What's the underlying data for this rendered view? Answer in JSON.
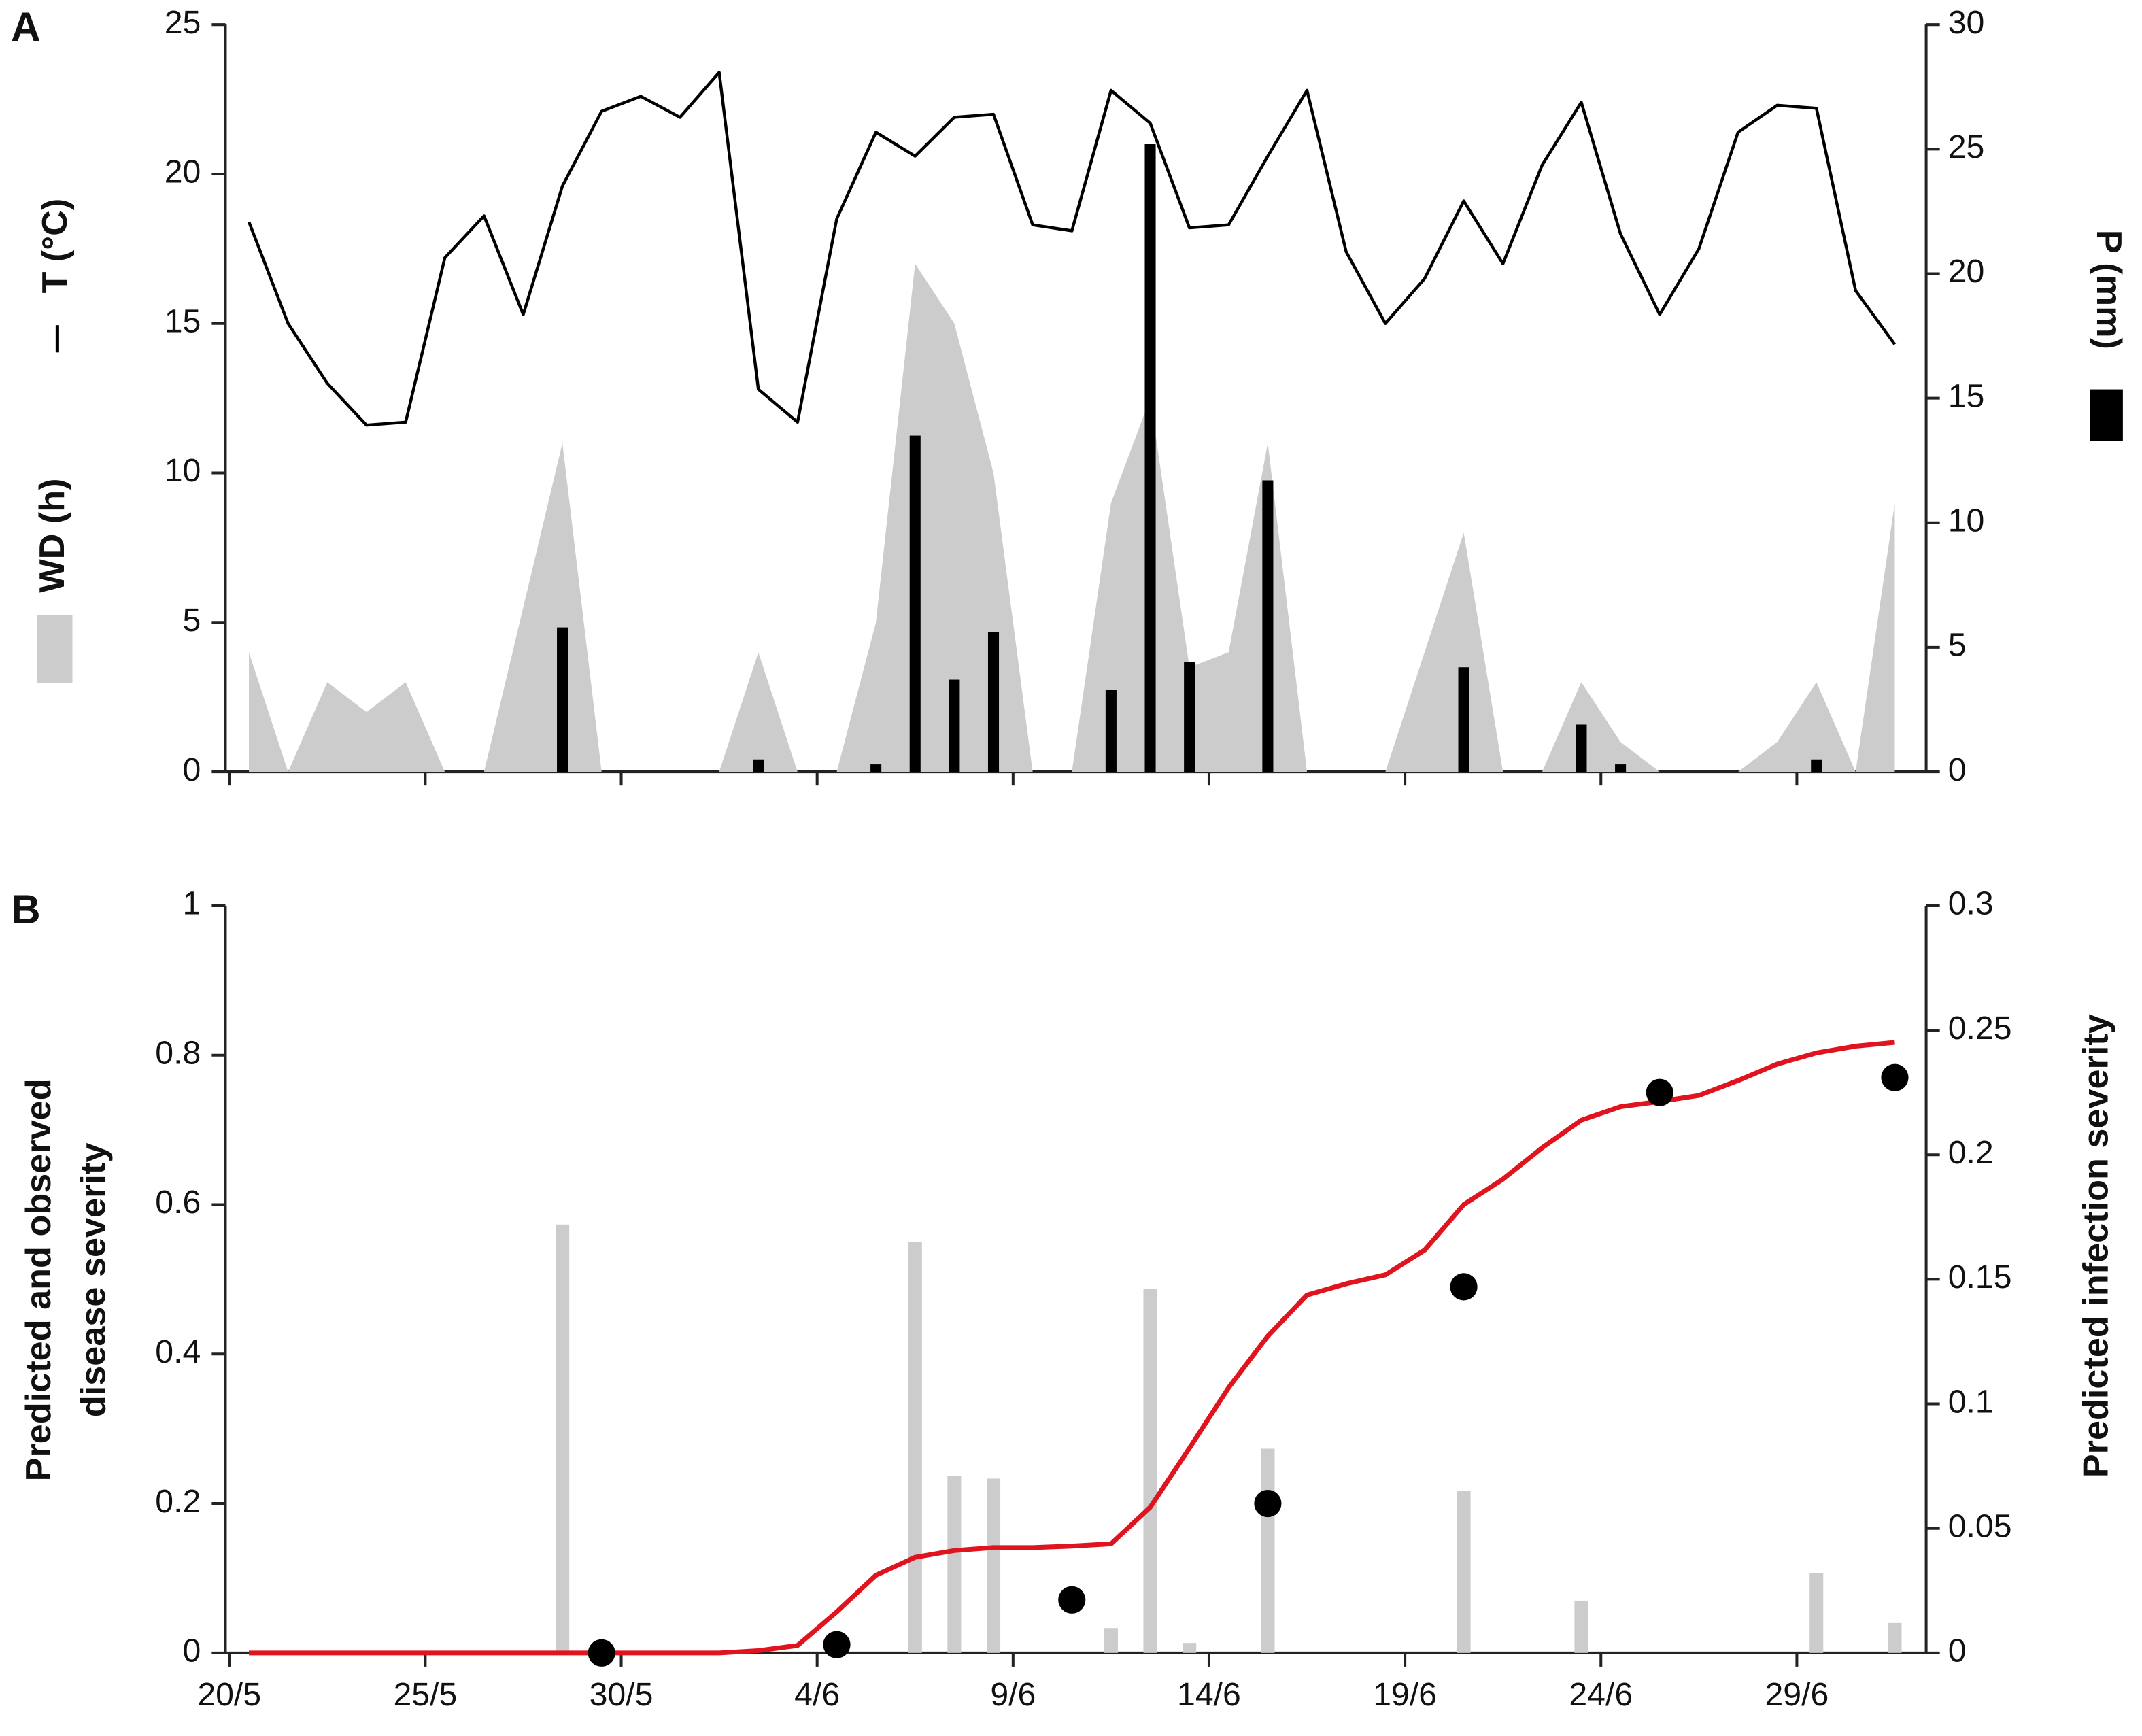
{
  "chart_data": [
    {
      "type": "combo",
      "panel": "A",
      "x": [
        0.5,
        1.5,
        2.5,
        3.5,
        4.5,
        5.5,
        6.5,
        7.5,
        8.5,
        9.5,
        10.5,
        11.5,
        12.5,
        13.5,
        14.5,
        15.5,
        16.5,
        17.5,
        18.5,
        19.5,
        20.5,
        21.5,
        22.5,
        23.5,
        24.5,
        25.5,
        26.5,
        27.5,
        28.5,
        29.5,
        30.5,
        31.5,
        32.5,
        33.5,
        34.5,
        35.5,
        36.5,
        37.5,
        38.5,
        39.5,
        40.5,
        41.5,
        42.5
      ],
      "xlim": [
        -0.1,
        43.3
      ],
      "xticks": [
        0,
        5,
        10,
        15,
        20,
        25,
        30,
        35,
        40
      ],
      "ylim": [
        0,
        25
      ],
      "yticks": [
        0,
        5,
        10,
        15,
        20,
        25
      ],
      "y2lim": [
        0,
        30
      ],
      "y2ticks": [
        0,
        5,
        10,
        15,
        20,
        25,
        30
      ],
      "series": [
        {
          "name": "WD (h)",
          "type": "area",
          "color": "#cccccc",
          "values": [
            4,
            0,
            3,
            2,
            3,
            0,
            0,
            5.5,
            11,
            0,
            0,
            0,
            0,
            4,
            0,
            0,
            5,
            17,
            15,
            10,
            0,
            0,
            9,
            12.5,
            3.5,
            4,
            11,
            0,
            0,
            0,
            4,
            8,
            0,
            0,
            3,
            1,
            0,
            0,
            0,
            1,
            3,
            0,
            9
          ]
        },
        {
          "name": "P (mm)",
          "type": "bar",
          "axis": "y2",
          "color": "#000000",
          "values": [
            0,
            0,
            0,
            0,
            0,
            0,
            0,
            0,
            5.8,
            0,
            0,
            0,
            0,
            0.5,
            0,
            0,
            0.3,
            13.5,
            3.7,
            5.6,
            0,
            0,
            3.3,
            25.2,
            4.4,
            0,
            11.7,
            0,
            0,
            0,
            0,
            4.2,
            0,
            0,
            1.9,
            0.3,
            0,
            0,
            0,
            0,
            0.5,
            0,
            0
          ]
        },
        {
          "name": "T (°C)",
          "type": "line",
          "color": "#000000",
          "values": [
            18.4,
            15.0,
            13.0,
            11.6,
            11.7,
            17.2,
            18.6,
            15.3,
            19.6,
            22.1,
            22.6,
            21.9,
            23.4,
            12.8,
            11.7,
            18.5,
            21.4,
            20.6,
            21.9,
            22.0,
            18.3,
            18.1,
            22.8,
            21.7,
            18.2,
            18.3,
            20.6,
            22.8,
            17.4,
            15.0,
            16.5,
            19.1,
            17.0,
            20.3,
            22.4,
            18.0,
            15.3,
            17.5,
            21.4,
            22.3,
            22.2,
            16.1,
            14.3
          ]
        }
      ]
    },
    {
      "type": "combo",
      "panel": "B",
      "ylabel": [
        "Predicted and observed",
        "disease severity"
      ],
      "y2label": "Predicted infection severity",
      "x": [
        0.5,
        1.5,
        2.5,
        3.5,
        4.5,
        5.5,
        6.5,
        7.5,
        8.5,
        9.5,
        10.5,
        11.5,
        12.5,
        13.5,
        14.5,
        15.5,
        16.5,
        17.5,
        18.5,
        19.5,
        20.5,
        21.5,
        22.5,
        23.5,
        24.5,
        25.5,
        26.5,
        27.5,
        28.5,
        29.5,
        30.5,
        31.5,
        32.5,
        33.5,
        34.5,
        35.5,
        36.5,
        37.5,
        38.5,
        39.5,
        40.5,
        41.5,
        42.5
      ],
      "xlim": [
        -0.1,
        43.3
      ],
      "xticks": [
        {
          "value": 0,
          "label": "20/5"
        },
        {
          "value": 5,
          "label": "25/5"
        },
        {
          "value": 10,
          "label": "30/5"
        },
        {
          "value": 15,
          "label": "4/6"
        },
        {
          "value": 20,
          "label": "9/6"
        },
        {
          "value": 25,
          "label": "14/6"
        },
        {
          "value": 30,
          "label": "19/6"
        },
        {
          "value": 35,
          "label": "24/6"
        },
        {
          "value": 40,
          "label": "29/6"
        }
      ],
      "ylim": [
        0,
        1
      ],
      "yticks": [
        0,
        0.2,
        0.4,
        0.6,
        0.8,
        1
      ],
      "y2lim": [
        0,
        0.3
      ],
      "y2ticks": [
        0,
        0.05,
        0.1,
        0.15,
        0.2,
        0.25,
        0.3
      ],
      "series": [
        {
          "type": "bar",
          "axis": "y2",
          "color": "#cccccc",
          "values": [
            0,
            0,
            0,
            0,
            0,
            0,
            0,
            0,
            0.172,
            0,
            0,
            0,
            0,
            0,
            0,
            0,
            0,
            0.165,
            0.071,
            0.07,
            0,
            0,
            0.01,
            0.146,
            0.004,
            0,
            0.082,
            0,
            0,
            0,
            0,
            0.065,
            0,
            0,
            0.021,
            0,
            0,
            0,
            0,
            0,
            0.032,
            0,
            0.012
          ]
        },
        {
          "type": "line",
          "color": "#e0141e",
          "values": [
            0,
            0,
            0,
            0,
            0,
            0,
            0,
            0,
            0,
            0,
            0,
            0,
            0,
            0.003,
            0.01,
            0.055,
            0.104,
            0.128,
            0.137,
            0.141,
            0.141,
            0.143,
            0.146,
            0.195,
            0.274,
            0.355,
            0.424,
            0.479,
            0.494,
            0.506,
            0.539,
            0.6,
            0.634,
            0.676,
            0.713,
            0.731,
            0.738,
            0.746,
            0.766,
            0.788,
            0.803,
            0.812,
            0.817
          ]
        },
        {
          "type": "scatter",
          "color": "#000000",
          "x": [
            9.5,
            15.5,
            21.5,
            26.5,
            31.5,
            36.5,
            42.5
          ],
          "values": [
            0,
            0.011,
            0.071,
            0.2,
            0.49,
            0.75,
            0.77
          ]
        }
      ]
    }
  ]
}
